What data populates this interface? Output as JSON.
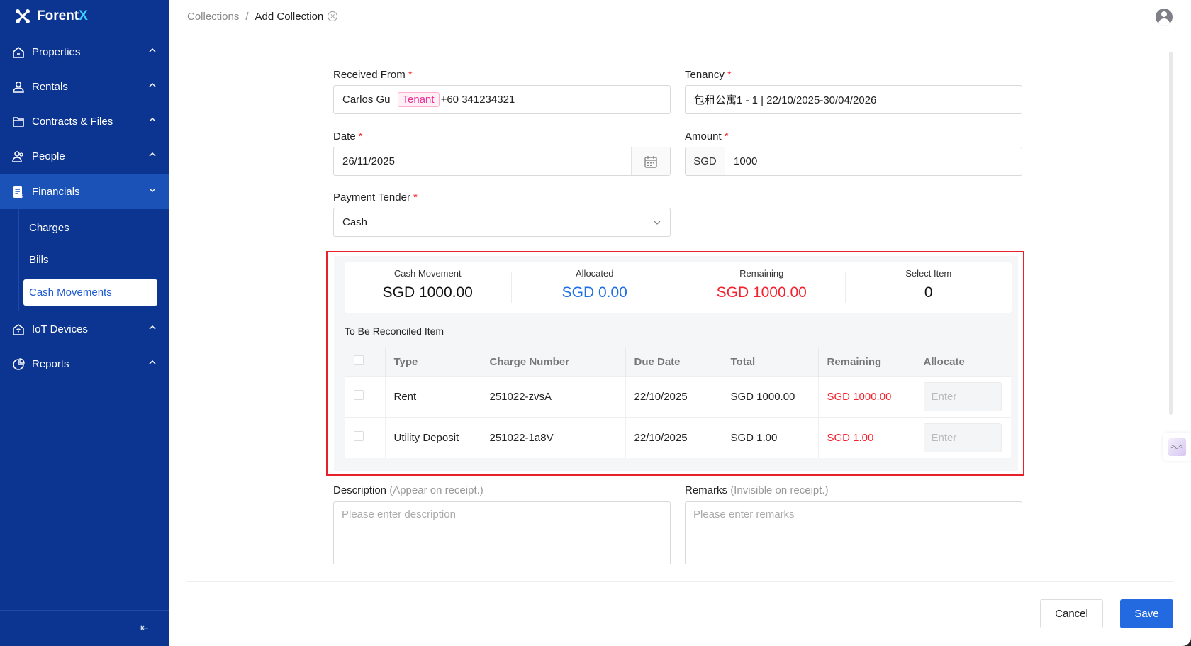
{
  "app": {
    "name_prefix": "Forent",
    "name_suffix": "X"
  },
  "sidebar": {
    "items": [
      {
        "label": "Properties",
        "icon": "home-icon"
      },
      {
        "label": "Rentals",
        "icon": "user-icon"
      },
      {
        "label": "Contracts & Files",
        "icon": "folder-icon"
      },
      {
        "label": "People",
        "icon": "people-icon"
      },
      {
        "label": "Financials",
        "icon": "financial-doc-icon",
        "active": true
      },
      {
        "label": "IoT Devices",
        "icon": "iot-home-icon"
      },
      {
        "label": "Reports",
        "icon": "pie-chart-icon"
      }
    ],
    "sub_items": [
      {
        "label": "Charges"
      },
      {
        "label": "Bills"
      },
      {
        "label": "Cash Movements",
        "active": true
      }
    ],
    "collapse_icon": "⇤"
  },
  "breadcrumb": {
    "parent": "Collections",
    "separator": "/",
    "current": "Add Collection"
  },
  "form": {
    "received_from": {
      "label": "Received From",
      "name": "Carlos Gu",
      "tag": "Tenant",
      "phone": "+60 341234321"
    },
    "tenancy": {
      "label": "Tenancy",
      "value": "包租公寓1 - 1 | 22/10/2025-30/04/2026"
    },
    "date": {
      "label": "Date",
      "value": "26/11/2025"
    },
    "amount": {
      "label": "Amount",
      "currency": "SGD",
      "value": "1000"
    },
    "payment_tender": {
      "label": "Payment Tender",
      "value": "Cash"
    },
    "description": {
      "label": "Description",
      "hint": "(Appear on receipt.)",
      "placeholder": "Please enter description"
    },
    "remarks": {
      "label": "Remarks",
      "hint": "(Invisible on receipt.)",
      "placeholder": "Please enter remarks"
    }
  },
  "summary": [
    {
      "label": "Cash Movement",
      "value": "SGD 1000.00",
      "color": "#111111"
    },
    {
      "label": "Allocated",
      "value": "SGD 0.00",
      "color": "#1e6ee8"
    },
    {
      "label": "Remaining",
      "value": "SGD 1000.00",
      "color": "#f5222d"
    },
    {
      "label": "Select Item",
      "value": "0",
      "color": "#111111"
    }
  ],
  "reconcile": {
    "title": "To Be Reconciled Item",
    "columns": [
      "Type",
      "Charge Number",
      "Due Date",
      "Total",
      "Remaining",
      "Allocate"
    ],
    "rows": [
      {
        "type": "Rent",
        "charge_number": "251022-zvsA",
        "due_date": "22/10/2025",
        "total": "SGD 1000.00",
        "remaining": "SGD 1000.00",
        "allocate_placeholder": "Enter"
      },
      {
        "type": "Utility Deposit",
        "charge_number": "251022-1a8V",
        "due_date": "22/10/2025",
        "total": "SGD 1.00",
        "remaining": "SGD 1.00",
        "allocate_placeholder": "Enter"
      }
    ]
  },
  "buttons": {
    "cancel": "Cancel",
    "save": "Save"
  },
  "colors": {
    "sidebar": "#0b3590",
    "active": "#1a52b8",
    "primary": "#2369e0",
    "required": "#f5222d",
    "highlight_box": "#e8202a"
  }
}
